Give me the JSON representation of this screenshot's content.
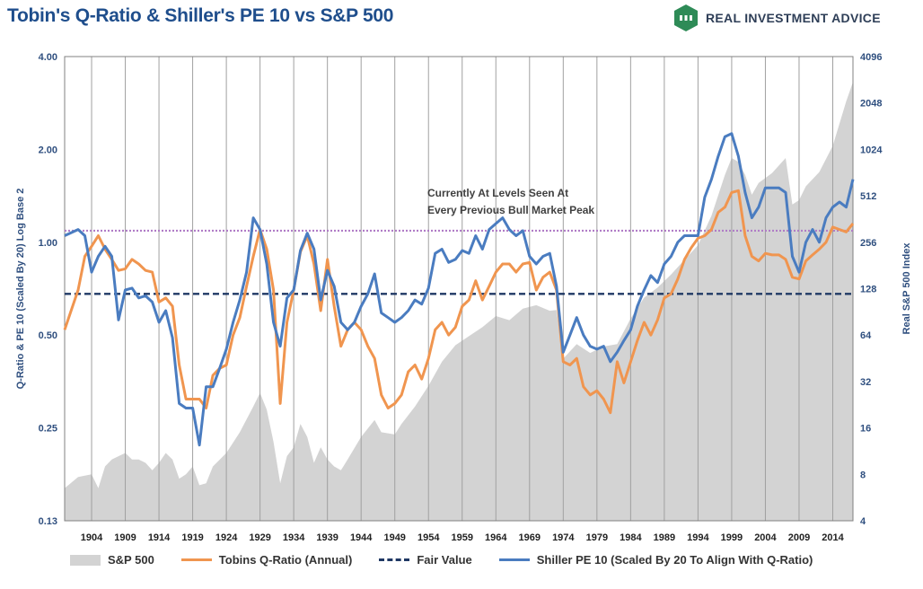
{
  "title": "Tobin's Q-Ratio & Shiller's PE 10 vs S&P 500",
  "brand": {
    "name": "REAL INVESTMENT ADVICE",
    "logo_icon": "chart-bars-logo-icon"
  },
  "chart_data": {
    "type": "line",
    "ylabel": "Q-Ratio & PE 10 (Scaled By 20) Log Base 2",
    "y2label": "Real S&P 500 Index",
    "y_scale": "log2",
    "ylim": [
      0.125,
      4.0
    ],
    "y_ticks": [
      0.13,
      0.25,
      0.5,
      1.0,
      2.0,
      4.0
    ],
    "y_tick_labels": [
      "0.13",
      "0.25",
      "0.50",
      "1.00",
      "2.00",
      "4.00"
    ],
    "y2_scale": "log2",
    "y2lim": [
      4,
      4096
    ],
    "y2_tick_labels": [
      "4",
      "8",
      "16",
      "32",
      "64",
      "128",
      "256",
      "512",
      "1024",
      "2048",
      "4096"
    ],
    "xlim": [
      1900,
      2017
    ],
    "x_ticks": [
      1904,
      1909,
      1914,
      1919,
      1924,
      1929,
      1934,
      1939,
      1944,
      1949,
      1954,
      1959,
      1964,
      1969,
      1974,
      1979,
      1984,
      1989,
      1994,
      1999,
      2004,
      2009,
      2014
    ],
    "grid": "vertical",
    "legend_position": "bottom",
    "annotation": [
      "Currently At Levels Seen At",
      "Every Previous Bull Market Peak"
    ],
    "reference_lines": [
      {
        "name": "Fair Value",
        "y": 0.68,
        "color": "#1f3864",
        "style": "dashed"
      },
      {
        "y": 1.09,
        "color": "#b07cc6",
        "style": "dotted"
      }
    ],
    "series": [
      {
        "name": "S&P 500",
        "axis": "right",
        "kind": "area",
        "color": "#d3d3d3",
        "x": [
          1900,
          1902,
          1904,
          1905,
          1906,
          1907,
          1909,
          1910,
          1911,
          1912,
          1913,
          1914,
          1915,
          1916,
          1917,
          1918,
          1919,
          1920,
          1921,
          1922,
          1924,
          1926,
          1928,
          1929,
          1930,
          1931,
          1932,
          1933,
          1934,
          1935,
          1936,
          1937,
          1938,
          1939,
          1940,
          1941,
          1942,
          1944,
          1946,
          1947,
          1949,
          1950,
          1952,
          1954,
          1956,
          1958,
          1960,
          1962,
          1964,
          1966,
          1968,
          1970,
          1972,
          1973,
          1974,
          1976,
          1978,
          1980,
          1982,
          1984,
          1986,
          1988,
          1990,
          1992,
          1994,
          1996,
          1998,
          1999,
          2000,
          2001,
          2002,
          2003,
          2005,
          2007,
          2008,
          2009,
          2010,
          2012,
          2014,
          2016,
          2017
        ],
        "y": [
          6.5,
          7.7,
          8,
          6.5,
          9,
          10,
          11,
          10,
          10,
          9.5,
          8.5,
          9.5,
          11,
          10,
          7.5,
          8,
          9,
          6.8,
          7,
          9,
          11,
          15,
          22,
          27,
          21,
          13,
          7,
          10.5,
          12,
          17,
          14,
          9.5,
          12,
          10,
          9,
          8.5,
          10,
          14,
          18,
          15,
          14.5,
          17,
          22,
          30,
          43,
          55,
          63,
          72,
          85,
          80,
          95,
          100,
          92,
          93,
          45,
          56,
          49,
          54,
          56,
          82,
          112,
          130,
          158,
          197,
          245,
          380,
          700,
          900,
          850,
          700,
          520,
          620,
          720,
          900,
          450,
          480,
          590,
          730,
          1080,
          2100,
          2800
        ]
      },
      {
        "name": "Tobins Q-Ratio (Annual)",
        "axis": "left",
        "kind": "line",
        "color": "#f0954f",
        "x": [
          1900,
          1902,
          1903,
          1904,
          1905,
          1906,
          1907,
          1908,
          1909,
          1910,
          1911,
          1912,
          1913,
          1914,
          1915,
          1916,
          1917,
          1918,
          1919,
          1920,
          1921,
          1922,
          1923,
          1924,
          1925,
          1926,
          1927,
          1928,
          1929,
          1930,
          1931,
          1932,
          1933,
          1934,
          1935,
          1936,
          1937,
          1938,
          1939,
          1940,
          1941,
          1942,
          1943,
          1944,
          1945,
          1946,
          1947,
          1948,
          1949,
          1950,
          1951,
          1952,
          1953,
          1954,
          1955,
          1956,
          1957,
          1958,
          1959,
          1960,
          1961,
          1962,
          1963,
          1964,
          1965,
          1966,
          1967,
          1968,
          1969,
          1970,
          1971,
          1972,
          1973,
          1974,
          1975,
          1976,
          1977,
          1978,
          1979,
          1980,
          1981,
          1982,
          1983,
          1984,
          1985,
          1986,
          1987,
          1988,
          1989,
          1990,
          1991,
          1992,
          1993,
          1994,
          1995,
          1996,
          1997,
          1998,
          1999,
          2000,
          2001,
          2002,
          2003,
          2004,
          2005,
          2006,
          2007,
          2008,
          2009,
          2010,
          2011,
          2012,
          2013,
          2014,
          2015,
          2016,
          2017
        ],
        "y": [
          0.52,
          0.7,
          0.9,
          0.97,
          1.05,
          0.95,
          0.88,
          0.81,
          0.82,
          0.88,
          0.85,
          0.81,
          0.8,
          0.64,
          0.66,
          0.62,
          0.4,
          0.31,
          0.31,
          0.31,
          0.29,
          0.37,
          0.39,
          0.4,
          0.5,
          0.57,
          0.72,
          0.9,
          1.1,
          0.95,
          0.7,
          0.3,
          0.55,
          0.7,
          0.93,
          1.05,
          0.85,
          0.6,
          0.88,
          0.62,
          0.46,
          0.52,
          0.55,
          0.52,
          0.46,
          0.42,
          0.32,
          0.29,
          0.3,
          0.32,
          0.38,
          0.4,
          0.36,
          0.42,
          0.52,
          0.55,
          0.5,
          0.53,
          0.62,
          0.65,
          0.75,
          0.65,
          0.72,
          0.8,
          0.85,
          0.85,
          0.8,
          0.85,
          0.86,
          0.7,
          0.77,
          0.8,
          0.7,
          0.41,
          0.4,
          0.42,
          0.34,
          0.32,
          0.33,
          0.31,
          0.28,
          0.41,
          0.35,
          0.41,
          0.48,
          0.55,
          0.5,
          0.56,
          0.66,
          0.68,
          0.76,
          0.88,
          0.96,
          1.03,
          1.05,
          1.1,
          1.25,
          1.3,
          1.45,
          1.47,
          1.05,
          0.9,
          0.87,
          0.92,
          0.91,
          0.91,
          0.88,
          0.77,
          0.76,
          0.87,
          0.91,
          0.95,
          1.0,
          1.12,
          1.1,
          1.08,
          1.15
        ]
      },
      {
        "name": "Shiller PE 10 (Scaled By 20 To Align With Q-Ratio)",
        "axis": "left",
        "kind": "line",
        "color": "#4a7cc0",
        "x": [
          1900,
          1902,
          1903,
          1904,
          1905,
          1906,
          1907,
          1908,
          1909,
          1910,
          1911,
          1912,
          1913,
          1914,
          1915,
          1916,
          1917,
          1918,
          1919,
          1920,
          1921,
          1922,
          1923,
          1924,
          1925,
          1926,
          1927,
          1928,
          1929,
          1930,
          1931,
          1932,
          1933,
          1934,
          1935,
          1936,
          1937,
          1938,
          1939,
          1940,
          1941,
          1942,
          1943,
          1944,
          1945,
          1946,
          1947,
          1948,
          1949,
          1950,
          1951,
          1952,
          1953,
          1954,
          1955,
          1956,
          1957,
          1958,
          1959,
          1960,
          1961,
          1962,
          1963,
          1964,
          1965,
          1966,
          1967,
          1968,
          1969,
          1970,
          1971,
          1972,
          1973,
          1974,
          1975,
          1976,
          1977,
          1978,
          1979,
          1980,
          1981,
          1982,
          1983,
          1984,
          1985,
          1986,
          1987,
          1988,
          1989,
          1990,
          1991,
          1992,
          1993,
          1994,
          1995,
          1996,
          1997,
          1998,
          1999,
          2000,
          2001,
          2002,
          2003,
          2004,
          2005,
          2006,
          2007,
          2008,
          2009,
          2010,
          2011,
          2012,
          2013,
          2014,
          2015,
          2016,
          2017
        ],
        "y": [
          1.05,
          1.1,
          1.05,
          0.8,
          0.9,
          0.97,
          0.9,
          0.56,
          0.7,
          0.71,
          0.66,
          0.67,
          0.64,
          0.55,
          0.6,
          0.49,
          0.3,
          0.29,
          0.29,
          0.22,
          0.34,
          0.34,
          0.39,
          0.45,
          0.55,
          0.65,
          0.8,
          1.2,
          1.1,
          0.85,
          0.55,
          0.46,
          0.66,
          0.7,
          0.94,
          1.07,
          0.95,
          0.65,
          0.81,
          0.72,
          0.55,
          0.52,
          0.55,
          0.62,
          0.68,
          0.79,
          0.59,
          0.57,
          0.55,
          0.57,
          0.6,
          0.65,
          0.63,
          0.71,
          0.92,
          0.95,
          0.86,
          0.88,
          0.94,
          0.92,
          1.05,
          0.95,
          1.1,
          1.15,
          1.2,
          1.1,
          1.05,
          1.09,
          0.9,
          0.85,
          0.9,
          0.92,
          0.72,
          0.44,
          0.5,
          0.57,
          0.5,
          0.46,
          0.45,
          0.46,
          0.41,
          0.44,
          0.48,
          0.52,
          0.62,
          0.7,
          0.78,
          0.74,
          0.85,
          0.9,
          1.0,
          1.05,
          1.05,
          1.05,
          1.4,
          1.6,
          1.9,
          2.2,
          2.25,
          1.9,
          1.45,
          1.2,
          1.3,
          1.5,
          1.5,
          1.5,
          1.45,
          0.9,
          0.8,
          1.0,
          1.1,
          1.0,
          1.2,
          1.3,
          1.35,
          1.3,
          1.6
        ]
      }
    ]
  },
  "legend": [
    {
      "label": "S&P 500",
      "swatch": "area",
      "color": "#d3d3d3"
    },
    {
      "label": "Tobins Q-Ratio (Annual)",
      "swatch": "line",
      "color": "#f0954f"
    },
    {
      "label": "Fair Value",
      "swatch": "dashed",
      "color": "#1f3864"
    },
    {
      "label": "Shiller PE 10 (Scaled By 20 To Align With Q-Ratio)",
      "swatch": "line",
      "color": "#4a7cc0"
    }
  ]
}
